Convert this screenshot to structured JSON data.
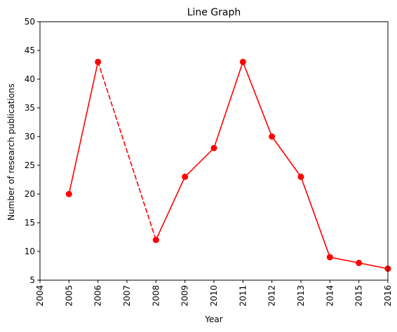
{
  "chart_data": {
    "type": "line",
    "title": "Line Graph",
    "xlabel": "Year",
    "ylabel": "Number of research publications",
    "xlim": [
      2004,
      2016
    ],
    "ylim": [
      5,
      50
    ],
    "x_ticks": [
      "2004",
      "2005",
      "2006",
      "2007",
      "2008",
      "2009",
      "2010",
      "2011",
      "2012",
      "2013",
      "2014",
      "2015",
      "2016"
    ],
    "y_ticks": [
      "5",
      "10",
      "15",
      "20",
      "25",
      "30",
      "35",
      "40",
      "45",
      "50"
    ],
    "grid": false,
    "color": "#ff0000",
    "points": [
      {
        "x": 2005,
        "y": 20
      },
      {
        "x": 2006,
        "y": 43
      },
      {
        "x": 2008,
        "y": 12
      },
      {
        "x": 2009,
        "y": 23
      },
      {
        "x": 2010,
        "y": 28
      },
      {
        "x": 2011,
        "y": 43
      },
      {
        "x": 2012,
        "y": 30
      },
      {
        "x": 2013,
        "y": 23
      },
      {
        "x": 2014,
        "y": 9
      },
      {
        "x": 2015,
        "y": 8
      },
      {
        "x": 2016,
        "y": 7
      }
    ],
    "segments": [
      {
        "from": 2005,
        "to": 2006,
        "style": "solid"
      },
      {
        "from": 2006,
        "to": 2008,
        "style": "dashed"
      },
      {
        "from": 2008,
        "to": 2009,
        "style": "solid"
      },
      {
        "from": 2009,
        "to": 2010,
        "style": "solid"
      },
      {
        "from": 2010,
        "to": 2011,
        "style": "solid"
      },
      {
        "from": 2011,
        "to": 2012,
        "style": "solid"
      },
      {
        "from": 2012,
        "to": 2013,
        "style": "solid"
      },
      {
        "from": 2013,
        "to": 2014,
        "style": "solid"
      },
      {
        "from": 2014,
        "to": 2015,
        "style": "solid"
      },
      {
        "from": 2015,
        "to": 2016,
        "style": "solid"
      }
    ]
  }
}
